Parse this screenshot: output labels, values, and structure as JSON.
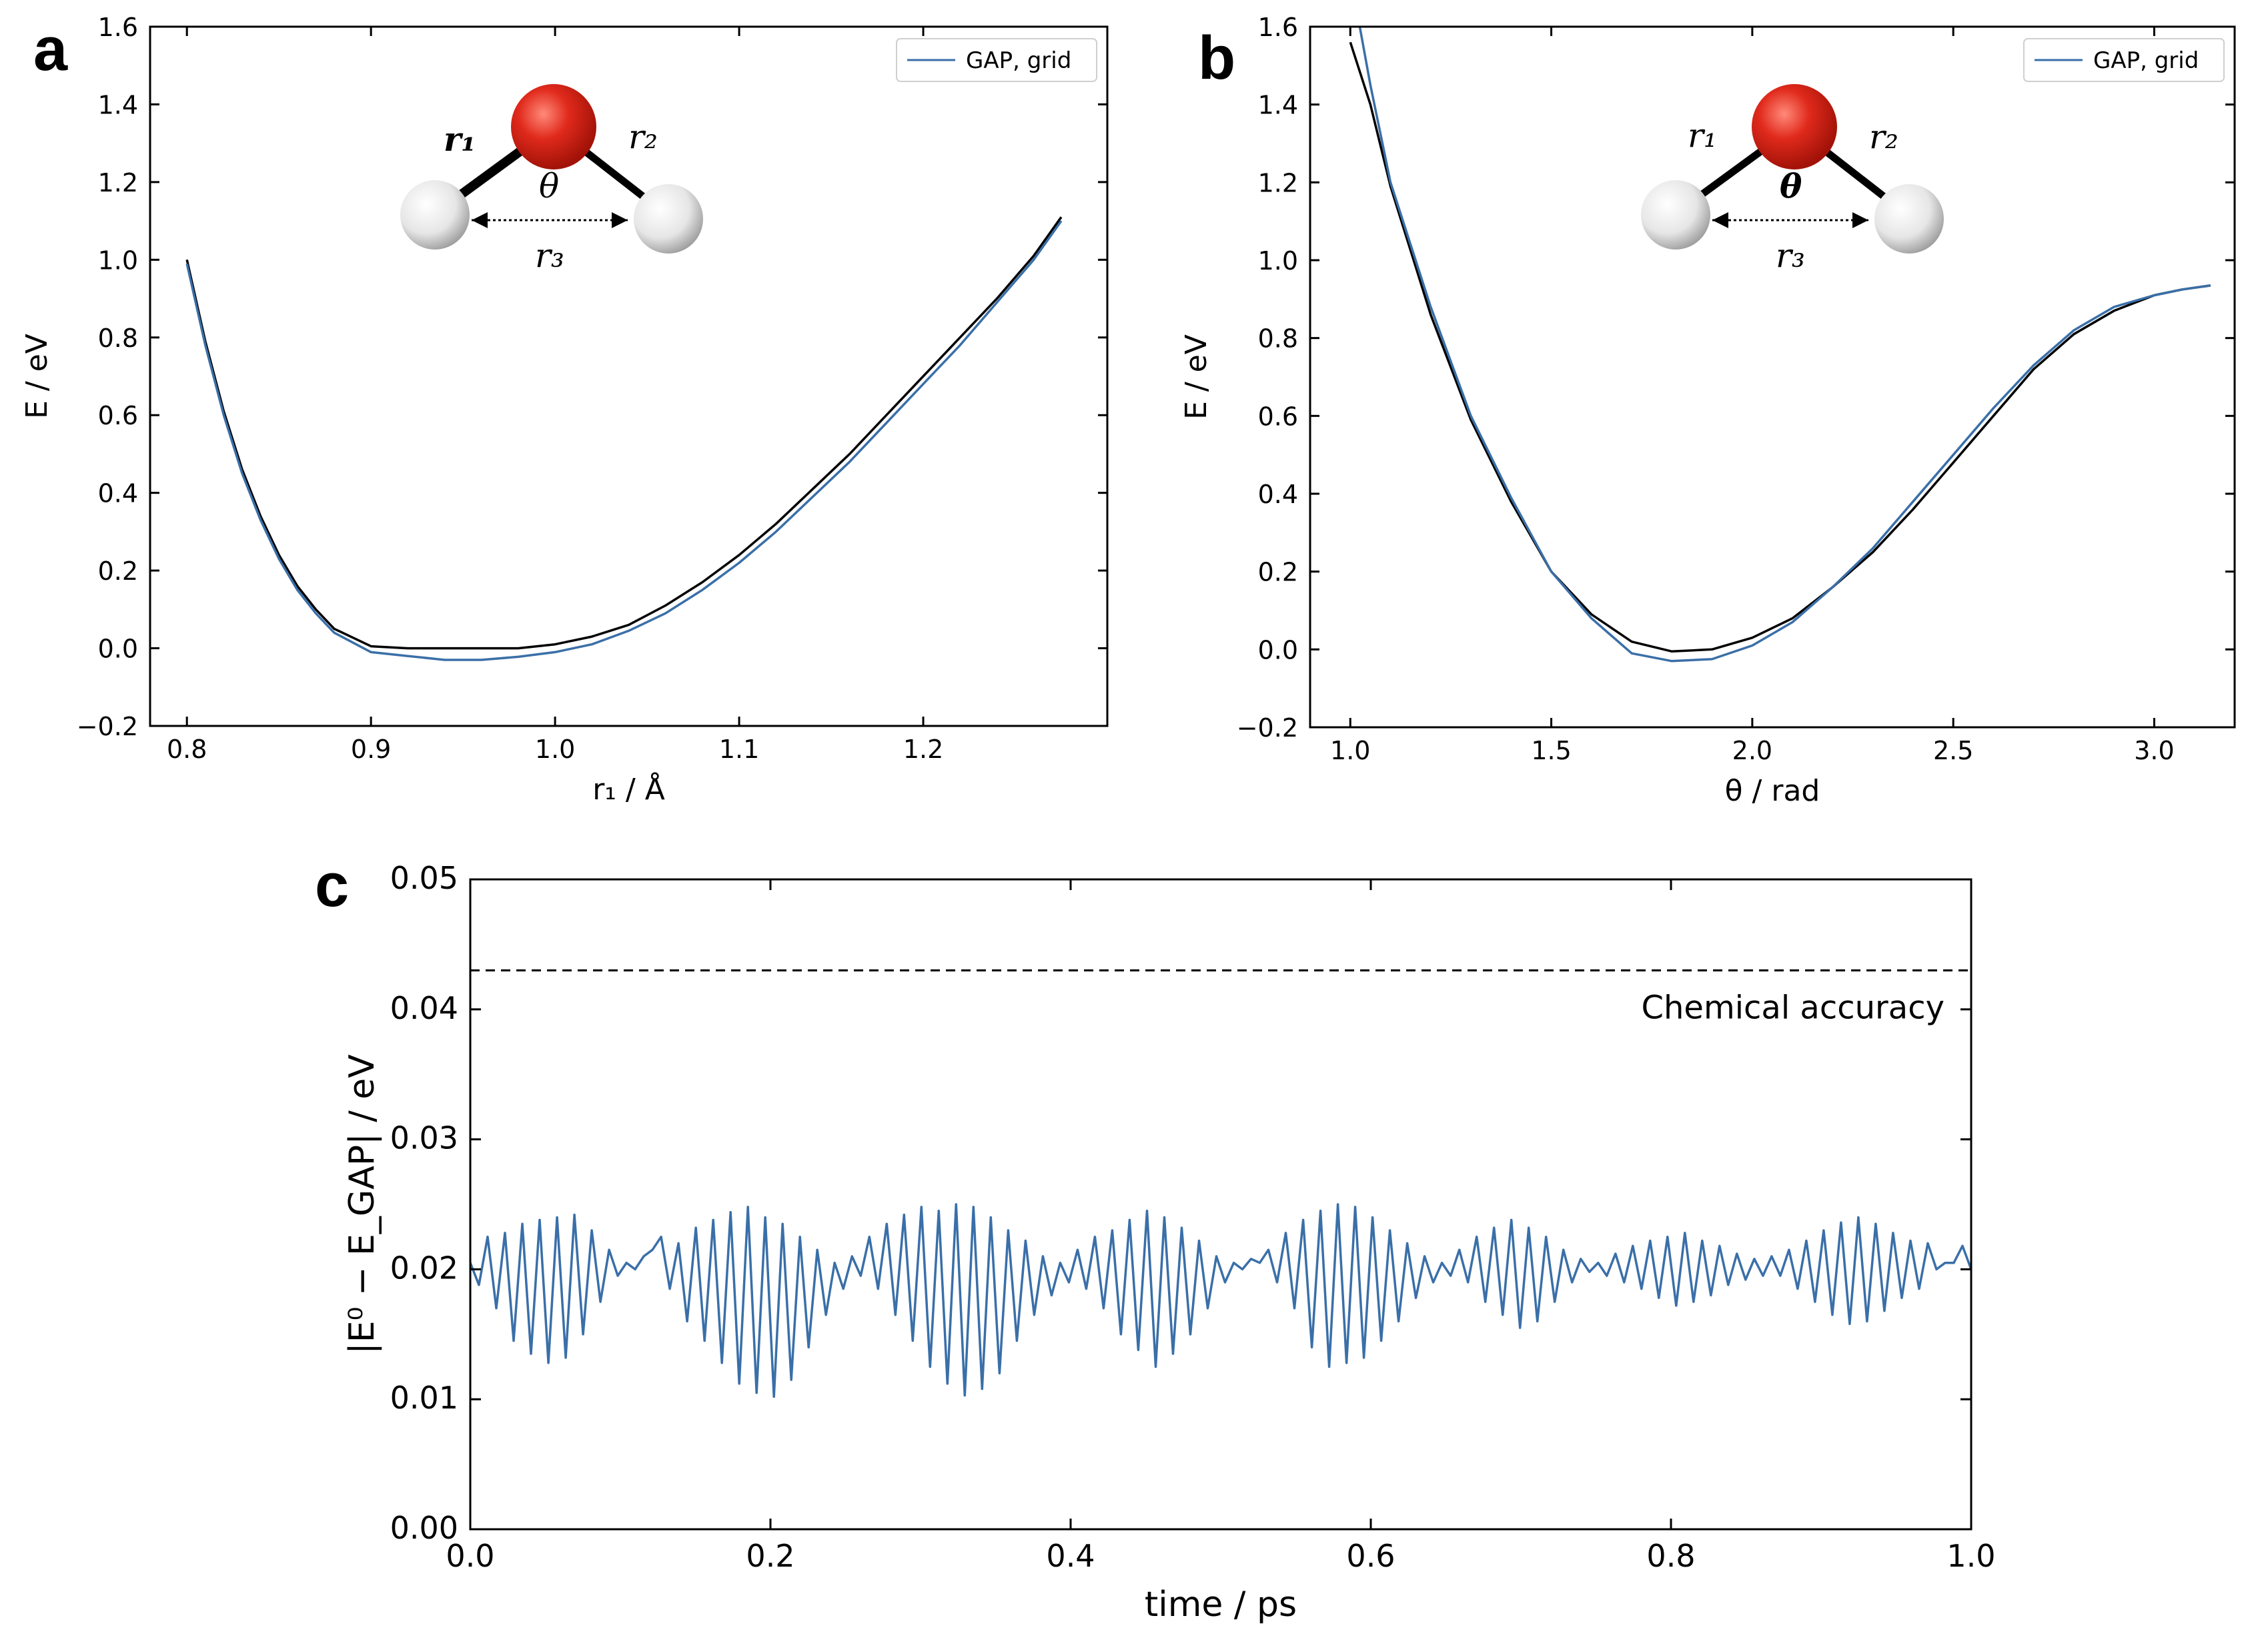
{
  "chart_data": [
    {
      "panel": "a",
      "type": "line",
      "xlabel": "r₁ / Å",
      "ylabel": "E / eV",
      "xlim": [
        0.78,
        1.3
      ],
      "ylim": [
        -0.2,
        1.6
      ],
      "xticks": [
        "0.8",
        "0.9",
        "1.0",
        "1.1",
        "1.2"
      ],
      "yticks": [
        "−0.2",
        "0.0",
        "0.2",
        "0.4",
        "0.6",
        "0.8",
        "1.0",
        "1.2",
        "1.4",
        "1.6"
      ],
      "legend": {
        "placement": "top-right",
        "entries": [
          "GAP, grid"
        ]
      },
      "inset_labels": {
        "bond1": "r₁",
        "bond2": "r₂",
        "angle": "θ",
        "distance": "r₃"
      },
      "series": [
        {
          "name": "GAP, grid",
          "color": "#3a6fa8",
          "x": [
            0.8,
            0.81,
            0.82,
            0.83,
            0.84,
            0.85,
            0.86,
            0.87,
            0.88,
            0.9,
            0.92,
            0.94,
            0.96,
            0.98,
            1.0,
            1.02,
            1.04,
            1.06,
            1.08,
            1.1,
            1.12,
            1.14,
            1.16,
            1.18,
            1.2,
            1.22,
            1.24,
            1.26,
            1.275
          ],
          "y": [
            0.99,
            0.78,
            0.6,
            0.45,
            0.33,
            0.23,
            0.15,
            0.09,
            0.04,
            -0.01,
            -0.02,
            -0.03,
            -0.03,
            -0.022,
            -0.01,
            0.01,
            0.045,
            0.09,
            0.15,
            0.22,
            0.3,
            0.39,
            0.48,
            0.58,
            0.68,
            0.78,
            0.89,
            1.0,
            1.1
          ]
        },
        {
          "color": "#000000",
          "x": [
            0.8,
            0.81,
            0.82,
            0.83,
            0.84,
            0.85,
            0.86,
            0.87,
            0.88,
            0.9,
            0.92,
            0.94,
            0.96,
            0.98,
            1.0,
            1.02,
            1.04,
            1.06,
            1.08,
            1.1,
            1.12,
            1.14,
            1.16,
            1.18,
            1.2,
            1.22,
            1.24,
            1.26,
            1.275
          ],
          "y": [
            1.0,
            0.79,
            0.61,
            0.46,
            0.34,
            0.24,
            0.16,
            0.1,
            0.05,
            0.005,
            0.0,
            0.0,
            0.0,
            0.0,
            0.01,
            0.03,
            0.06,
            0.11,
            0.17,
            0.24,
            0.32,
            0.41,
            0.5,
            0.6,
            0.7,
            0.8,
            0.9,
            1.01,
            1.11
          ]
        }
      ]
    },
    {
      "panel": "b",
      "type": "line",
      "xlabel": "θ / rad",
      "ylabel": "E / eV",
      "xlim": [
        0.9,
        3.2
      ],
      "ylim": [
        -0.2,
        1.6
      ],
      "xticks": [
        "1.0",
        "1.5",
        "2.0",
        "2.5",
        "3.0"
      ],
      "yticks": [
        "−0.2",
        "0.0",
        "0.2",
        "0.4",
        "0.6",
        "0.8",
        "1.0",
        "1.2",
        "1.4",
        "1.6"
      ],
      "legend": {
        "placement": "top-right",
        "entries": [
          "GAP, grid"
        ]
      },
      "inset_labels": {
        "bond1": "r₁",
        "bond2": "r₂",
        "angle": "θ",
        "distance": "r₃"
      },
      "series": [
        {
          "name": "GAP, grid",
          "color": "#3a6fa8",
          "x": [
            1.02,
            1.05,
            1.1,
            1.2,
            1.3,
            1.4,
            1.5,
            1.6,
            1.7,
            1.8,
            1.9,
            2.0,
            2.1,
            2.2,
            2.3,
            2.4,
            2.5,
            2.6,
            2.7,
            2.8,
            2.9,
            3.0,
            3.07,
            3.14
          ],
          "y": [
            1.62,
            1.45,
            1.2,
            0.88,
            0.6,
            0.39,
            0.2,
            0.08,
            -0.01,
            -0.03,
            -0.025,
            0.01,
            0.07,
            0.16,
            0.26,
            0.38,
            0.5,
            0.62,
            0.73,
            0.82,
            0.88,
            0.91,
            0.925,
            0.935
          ]
        },
        {
          "color": "#000000",
          "x": [
            1.0,
            1.05,
            1.1,
            1.2,
            1.3,
            1.4,
            1.5,
            1.6,
            1.7,
            1.8,
            1.9,
            2.0,
            2.1,
            2.2,
            2.3,
            2.4,
            2.5,
            2.6,
            2.7,
            2.8,
            2.9,
            3.0,
            3.07,
            3.14
          ],
          "y": [
            1.56,
            1.4,
            1.19,
            0.86,
            0.59,
            0.38,
            0.2,
            0.09,
            0.02,
            -0.005,
            0.0,
            0.03,
            0.08,
            0.16,
            0.25,
            0.36,
            0.48,
            0.6,
            0.72,
            0.81,
            0.87,
            0.91,
            0.925,
            0.935
          ]
        }
      ]
    },
    {
      "panel": "c",
      "type": "line",
      "xlabel": "time / ps",
      "ylabel": "|E⁰ − E_GAP| / eV",
      "xlim": [
        0.0,
        1.0
      ],
      "ylim": [
        0.0,
        0.05
      ],
      "xticks": [
        "0.0",
        "0.2",
        "0.4",
        "0.6",
        "0.8",
        "1.0"
      ],
      "yticks": [
        "0.00",
        "0.01",
        "0.02",
        "0.03",
        "0.04",
        "0.05"
      ],
      "annotation": {
        "text": "Chemical accuracy",
        "y": 0.043,
        "style": "dashed",
        "color": "#000000"
      },
      "series": [
        {
          "color": "#3a6fa8",
          "x_start": 0.0,
          "x_end": 1.0,
          "y": [
            0.0205,
            0.0188,
            0.0225,
            0.017,
            0.0228,
            0.0145,
            0.0235,
            0.0135,
            0.0238,
            0.0128,
            0.024,
            0.0132,
            0.0242,
            0.015,
            0.023,
            0.0175,
            0.0215,
            0.0195,
            0.0205,
            0.02,
            0.021,
            0.0215,
            0.0225,
            0.0185,
            0.022,
            0.016,
            0.0232,
            0.0145,
            0.0238,
            0.0128,
            0.0244,
            0.0112,
            0.0248,
            0.0105,
            0.024,
            0.0102,
            0.0235,
            0.0115,
            0.0225,
            0.014,
            0.0215,
            0.0165,
            0.0205,
            0.0185,
            0.021,
            0.0195,
            0.0225,
            0.0185,
            0.0235,
            0.0165,
            0.0242,
            0.0145,
            0.0248,
            0.0125,
            0.0245,
            0.0112,
            0.025,
            0.0103,
            0.0248,
            0.0108,
            0.024,
            0.012,
            0.023,
            0.0145,
            0.0222,
            0.0165,
            0.021,
            0.018,
            0.0205,
            0.019,
            0.0215,
            0.0185,
            0.0225,
            0.017,
            0.023,
            0.015,
            0.0238,
            0.0138,
            0.0245,
            0.0125,
            0.024,
            0.0135,
            0.0232,
            0.015,
            0.0222,
            0.017,
            0.021,
            0.019,
            0.0205,
            0.02,
            0.0208,
            0.0205,
            0.0215,
            0.019,
            0.0228,
            0.017,
            0.0238,
            0.014,
            0.0245,
            0.0125,
            0.025,
            0.0128,
            0.0248,
            0.0132,
            0.024,
            0.0145,
            0.023,
            0.016,
            0.022,
            0.0178,
            0.021,
            0.019,
            0.0205,
            0.0195,
            0.0215,
            0.019,
            0.0225,
            0.0175,
            0.0232,
            0.0165,
            0.0238,
            0.0155,
            0.0232,
            0.016,
            0.0225,
            0.0175,
            0.0215,
            0.019,
            0.0208,
            0.0198,
            0.0205,
            0.0195,
            0.0212,
            0.019,
            0.0218,
            0.0185,
            0.0222,
            0.0178,
            0.0225,
            0.0172,
            0.0228,
            0.0175,
            0.0222,
            0.018,
            0.0218,
            0.0188,
            0.0212,
            0.0192,
            0.0208,
            0.0195,
            0.021,
            0.0195,
            0.0215,
            0.0185,
            0.0222,
            0.0175,
            0.023,
            0.0165,
            0.0236,
            0.0158,
            0.024,
            0.016,
            0.0235,
            0.0168,
            0.0228,
            0.0178,
            0.0222,
            0.0185,
            0.022,
            0.02,
            0.0205,
            0.0205,
            0.0218,
            0.02
          ]
        }
      ]
    }
  ]
}
